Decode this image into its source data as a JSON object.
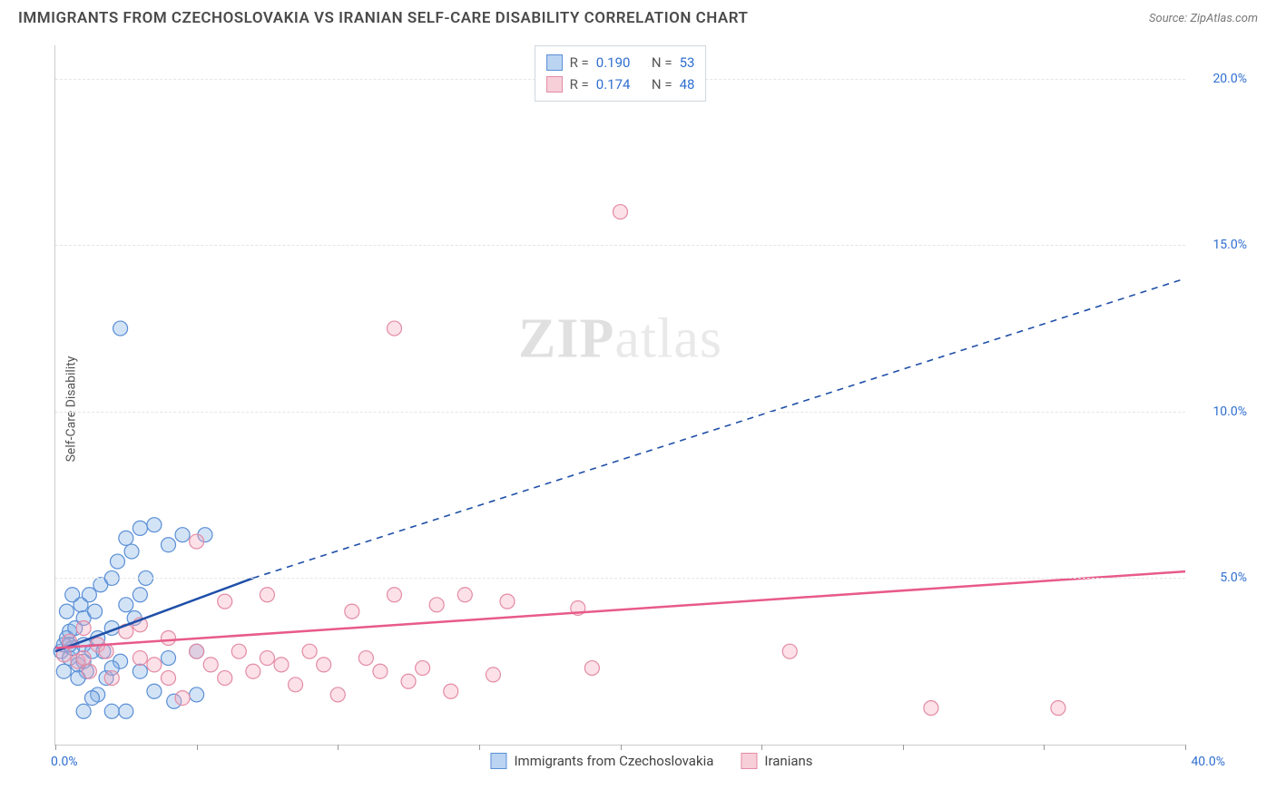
{
  "header": {
    "title": "IMMIGRANTS FROM CZECHOSLOVAKIA VS IRANIAN SELF-CARE DISABILITY CORRELATION CHART",
    "source_label": "Source:",
    "source_name": "ZipAtlas.com"
  },
  "chart": {
    "type": "scatter",
    "ylabel": "Self-Care Disability",
    "xlim": [
      0,
      40
    ],
    "ylim": [
      0,
      21
    ],
    "xticks": [
      0,
      5,
      10,
      15,
      20,
      25,
      30,
      35,
      40
    ],
    "xtick_labels": [
      "0.0%",
      "",
      "",
      "",
      "",
      "",
      "",
      "",
      "40.0%"
    ],
    "yticks": [
      5,
      10,
      15,
      20
    ],
    "ytick_labels": [
      "5.0%",
      "10.0%",
      "15.0%",
      "20.0%"
    ],
    "grid_color": "#e5e5e5",
    "axis_color": "#cccccc",
    "background": "#ffffff",
    "watermark": "ZIPatlas",
    "marker_radius": 8,
    "marker_stroke_width": 1.2,
    "series": [
      {
        "name": "Immigrants from Czechoslovakia",
        "color_fill": "rgba(130,175,230,0.35)",
        "color_stroke": "#5a8fd6",
        "trend_color": "#1f4fa8",
        "trend_solid": [
          [
            0,
            2.8
          ],
          [
            7,
            5.0
          ]
        ],
        "trend_dash": [
          [
            7,
            5.0
          ],
          [
            40,
            14.0
          ]
        ],
        "data": [
          [
            0.2,
            2.8
          ],
          [
            0.3,
            3.0
          ],
          [
            0.4,
            3.2
          ],
          [
            0.5,
            2.6
          ],
          [
            0.5,
            3.4
          ],
          [
            0.6,
            2.9
          ],
          [
            0.7,
            3.5
          ],
          [
            0.8,
            2.4
          ],
          [
            0.9,
            4.2
          ],
          [
            1.0,
            3.0
          ],
          [
            1.0,
            3.8
          ],
          [
            1.1,
            2.2
          ],
          [
            1.2,
            4.5
          ],
          [
            1.3,
            2.8
          ],
          [
            1.4,
            4.0
          ],
          [
            1.5,
            3.2
          ],
          [
            1.5,
            1.5
          ],
          [
            1.6,
            4.8
          ],
          [
            1.8,
            2.0
          ],
          [
            2.0,
            5.0
          ],
          [
            2.0,
            3.5
          ],
          [
            2.0,
            1.0
          ],
          [
            2.2,
            5.5
          ],
          [
            2.3,
            2.5
          ],
          [
            2.5,
            4.2
          ],
          [
            2.5,
            6.2
          ],
          [
            2.5,
            1.0
          ],
          [
            2.7,
            5.8
          ],
          [
            2.8,
            3.8
          ],
          [
            3.0,
            6.5
          ],
          [
            3.0,
            2.2
          ],
          [
            3.0,
            4.5
          ],
          [
            3.2,
            5.0
          ],
          [
            3.5,
            6.6
          ],
          [
            3.5,
            1.6
          ],
          [
            4.0,
            6.0
          ],
          [
            4.0,
            2.6
          ],
          [
            4.2,
            1.3
          ],
          [
            4.5,
            6.3
          ],
          [
            5.0,
            1.5
          ],
          [
            5.0,
            2.8
          ],
          [
            5.3,
            6.3
          ],
          [
            1.0,
            1.0
          ],
          [
            1.3,
            1.4
          ],
          [
            0.4,
            4.0
          ],
          [
            0.6,
            4.5
          ],
          [
            0.8,
            2.0
          ],
          [
            0.3,
            2.2
          ],
          [
            2.3,
            12.5
          ],
          [
            1.0,
            2.5
          ],
          [
            1.7,
            2.8
          ],
          [
            2.0,
            2.3
          ],
          [
            0.5,
            3.0
          ]
        ]
      },
      {
        "name": "Iranians",
        "color_fill": "rgba(245,170,190,0.35)",
        "color_stroke": "#e38ba5",
        "trend_color": "#e85a8a",
        "trend_solid": [
          [
            0,
            2.9
          ],
          [
            40,
            5.2
          ]
        ],
        "trend_dash": null,
        "data": [
          [
            0.3,
            2.7
          ],
          [
            0.5,
            3.1
          ],
          [
            0.8,
            2.5
          ],
          [
            1.0,
            3.5
          ],
          [
            1.2,
            2.2
          ],
          [
            1.5,
            3.0
          ],
          [
            1.8,
            2.8
          ],
          [
            2.0,
            2.0
          ],
          [
            2.5,
            3.4
          ],
          [
            3.0,
            2.6
          ],
          [
            3.5,
            2.4
          ],
          [
            4.0,
            3.2
          ],
          [
            4.5,
            1.4
          ],
          [
            5.0,
            2.8
          ],
          [
            5.5,
            2.4
          ],
          [
            6.0,
            4.3
          ],
          [
            6.0,
            2.0
          ],
          [
            6.5,
            2.8
          ],
          [
            7.0,
            2.2
          ],
          [
            7.5,
            4.5
          ],
          [
            8.0,
            2.4
          ],
          [
            8.5,
            1.8
          ],
          [
            9.0,
            2.8
          ],
          [
            5.0,
            6.1
          ],
          [
            10.0,
            1.5
          ],
          [
            10.5,
            4.0
          ],
          [
            11.0,
            2.6
          ],
          [
            11.5,
            2.2
          ],
          [
            12.0,
            4.5
          ],
          [
            12.5,
            1.9
          ],
          [
            13.0,
            2.3
          ],
          [
            13.5,
            4.2
          ],
          [
            14.0,
            1.6
          ],
          [
            14.5,
            4.5
          ],
          [
            15.5,
            2.1
          ],
          [
            16.0,
            4.3
          ],
          [
            18.5,
            4.1
          ],
          [
            19.0,
            2.3
          ],
          [
            26.0,
            2.8
          ],
          [
            31.0,
            1.1
          ],
          [
            35.5,
            1.1
          ],
          [
            20.0,
            16.0
          ],
          [
            12.0,
            12.5
          ],
          [
            9.5,
            2.4
          ],
          [
            7.5,
            2.6
          ],
          [
            4.0,
            2.0
          ],
          [
            3.0,
            3.6
          ],
          [
            1.0,
            2.6
          ]
        ]
      }
    ],
    "stats": [
      {
        "swatch": "blue",
        "R": "0.190",
        "N": "53"
      },
      {
        "swatch": "pink",
        "R": "0.174",
        "N": "48"
      }
    ],
    "legend": [
      {
        "swatch": "blue",
        "label": "Immigrants from Czechoslovakia"
      },
      {
        "swatch": "pink",
        "label": "Iranians"
      }
    ]
  },
  "labels": {
    "R": "R =",
    "N": "N ="
  }
}
